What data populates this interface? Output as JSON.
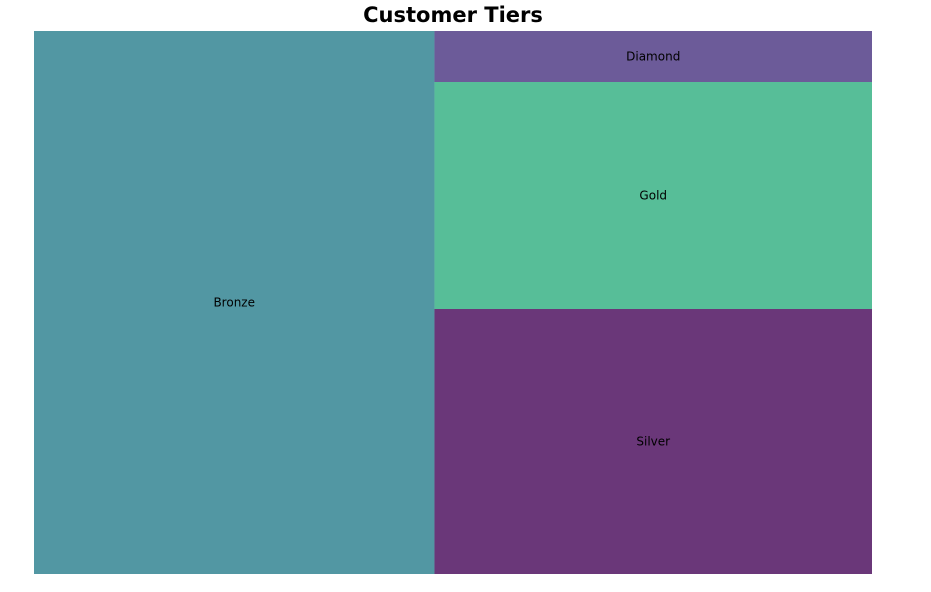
{
  "chart_data": {
    "type": "treemap",
    "title": "Customer Tiers",
    "items": [
      {
        "label": "Bronze",
        "value": 497,
        "color": "#5297a3"
      },
      {
        "label": "Silver",
        "value": 265,
        "color": "#6a3779"
      },
      {
        "label": "Gold",
        "value": 227,
        "color": "#57be98"
      },
      {
        "label": "Diamond",
        "value": 51,
        "color": "#6c5b99"
      }
    ]
  }
}
